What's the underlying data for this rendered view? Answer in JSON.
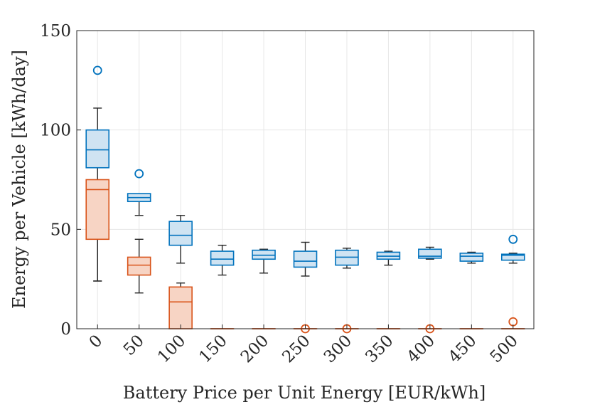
{
  "chart_data": {
    "type": "box",
    "xlabel": "Battery Price per Unit Energy [EUR/kWh]",
    "ylabel": "Energy per Vehicle [kWh/day]",
    "ylim": [
      0,
      150
    ],
    "yticks": [
      0,
      50,
      100,
      150
    ],
    "categories": [
      "0",
      "50",
      "100",
      "150",
      "200",
      "250",
      "300",
      "350",
      "400",
      "450",
      "500"
    ],
    "grid": true,
    "colors": {
      "blue": "#0072BD",
      "blue_fill": "#cfe3f2",
      "orange": "#D95319",
      "orange_fill": "#f7d4c4",
      "whisker": "#262626"
    },
    "series": [
      {
        "boxes": [
          {
            "q1": 81,
            "median": 90,
            "q3": 100,
            "low": 24,
            "high": 111,
            "outliers": [
              130
            ]
          },
          {
            "q1": 64,
            "median": 66,
            "q3": 68,
            "low": 57,
            "high": 68,
            "outliers": [
              78
            ]
          },
          {
            "q1": 42,
            "median": 47,
            "q3": 54,
            "low": 33,
            "high": 57,
            "outliers": []
          },
          {
            "q1": 32,
            "median": 35,
            "q3": 39,
            "low": 27,
            "high": 42,
            "outliers": []
          },
          {
            "q1": 35,
            "median": 37,
            "q3": 39.5,
            "low": 28,
            "high": 40,
            "outliers": []
          },
          {
            "q1": 31,
            "median": 34,
            "q3": 39,
            "low": 26.5,
            "high": 43.5,
            "outliers": []
          },
          {
            "q1": 32,
            "median": 36,
            "q3": 39.5,
            "low": 30.5,
            "high": 40.5,
            "outliers": []
          },
          {
            "q1": 35,
            "median": 36.5,
            "q3": 38.5,
            "low": 32,
            "high": 39,
            "outliers": []
          },
          {
            "q1": 35.5,
            "median": 36.5,
            "q3": 40,
            "low": 35,
            "high": 41,
            "outliers": []
          },
          {
            "q1": 34,
            "median": 36.5,
            "q3": 38,
            "low": 33,
            "high": 38.5,
            "outliers": []
          },
          {
            "q1": 34.5,
            "median": 37,
            "q3": 37.5,
            "low": 33,
            "high": 38,
            "outliers": [
              45
            ]
          }
        ]
      },
      {
        "boxes": [
          {
            "q1": 45,
            "median": 70,
            "q3": 75,
            "low": 24,
            "high": 75,
            "outliers": []
          },
          {
            "q1": 27,
            "median": 32,
            "q3": 36,
            "low": 18,
            "high": 45,
            "outliers": []
          },
          {
            "q1": 0,
            "median": 13.5,
            "q3": 21,
            "low": 0,
            "high": 23,
            "outliers": []
          },
          {
            "q1": 0,
            "median": 0,
            "q3": 0,
            "low": 0,
            "high": 0,
            "outliers": []
          },
          {
            "q1": 0,
            "median": 0,
            "q3": 0,
            "low": 0,
            "high": 0,
            "outliers": []
          },
          {
            "q1": 0,
            "median": 0,
            "q3": 0,
            "low": 0,
            "high": 0,
            "outliers": [
              0
            ]
          },
          {
            "q1": 0,
            "median": 0,
            "q3": 0,
            "low": 0,
            "high": 0,
            "outliers": [
              0
            ]
          },
          {
            "q1": 0,
            "median": 0,
            "q3": 0,
            "low": 0,
            "high": 0,
            "outliers": []
          },
          {
            "q1": 0,
            "median": 0,
            "q3": 0,
            "low": 0,
            "high": 0,
            "outliers": [
              0
            ]
          },
          {
            "q1": 0,
            "median": 0,
            "q3": 0,
            "low": 0,
            "high": 0,
            "outliers": []
          },
          {
            "q1": 0,
            "median": 0,
            "q3": 0,
            "low": 0,
            "high": 0,
            "outliers": [
              3.5
            ]
          }
        ]
      }
    ]
  }
}
